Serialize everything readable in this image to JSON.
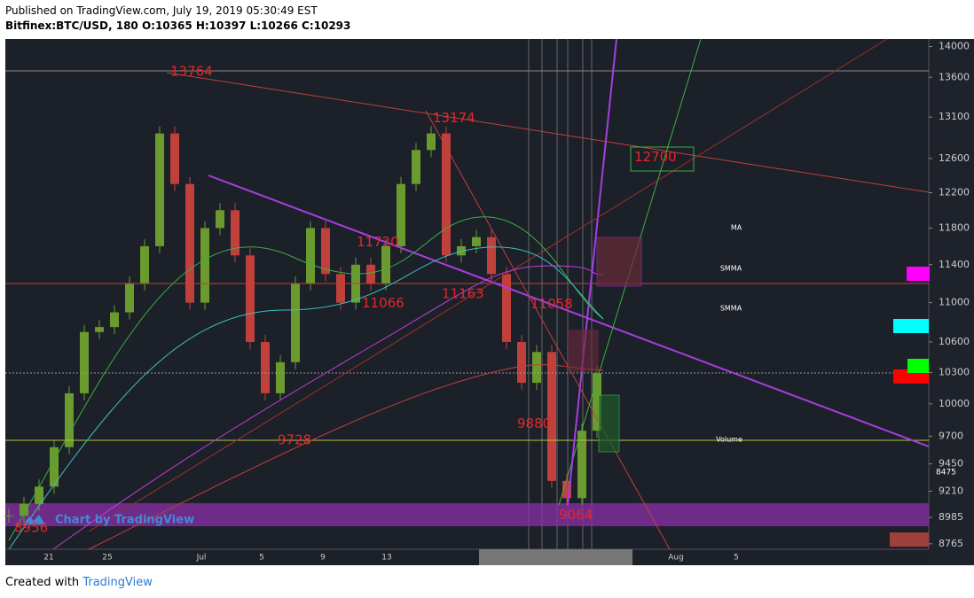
{
  "header": {
    "published": "Published on TradingView.com, July 19, 2019 05:30:49 EST",
    "symbol_line": "Bitfinex:BTC/USD, 180 O:10365 H:10397 L:10266 C:10293"
  },
  "chart_data": {
    "type": "candlestick",
    "log_scale": true,
    "ylim": [
      8720,
      14100
    ],
    "yticks": [
      14000,
      13600,
      13100,
      12600,
      12200,
      11800,
      11400,
      11000,
      10600,
      10300,
      10000,
      9700,
      9450,
      9210,
      8985,
      8765
    ],
    "x_labels": [
      "21",
      "25",
      "Jul",
      "5",
      "9",
      "13",
      "Aug",
      "5"
    ],
    "up_color": "#6b9a2e",
    "down_color": "#c0413b",
    "closes": [
      9000,
      9100,
      9250,
      9600,
      10100,
      10700,
      10750,
      10900,
      11200,
      11600,
      12900,
      12300,
      11000,
      11800,
      12000,
      11500,
      10600,
      10100,
      10400,
      11200,
      11800,
      11300,
      11000,
      11400,
      11200,
      11600,
      12300,
      12700,
      12900,
      11500,
      11600,
      11700,
      11300,
      10600,
      10200,
      10500,
      9300,
      9150,
      9750,
      10293
    ],
    "annotations": [
      13764,
      13174,
      12700,
      11720,
      11066,
      11163,
      11058,
      9880,
      9728,
      9064,
      8956
    ],
    "price_marker": "8475",
    "indicator_labels": [
      "MA",
      "SMMA",
      "SMMA",
      "Volume"
    ],
    "watermark": "Chart by TradingView"
  },
  "footer": {
    "created": "Created with",
    "brand": "TradingView"
  }
}
